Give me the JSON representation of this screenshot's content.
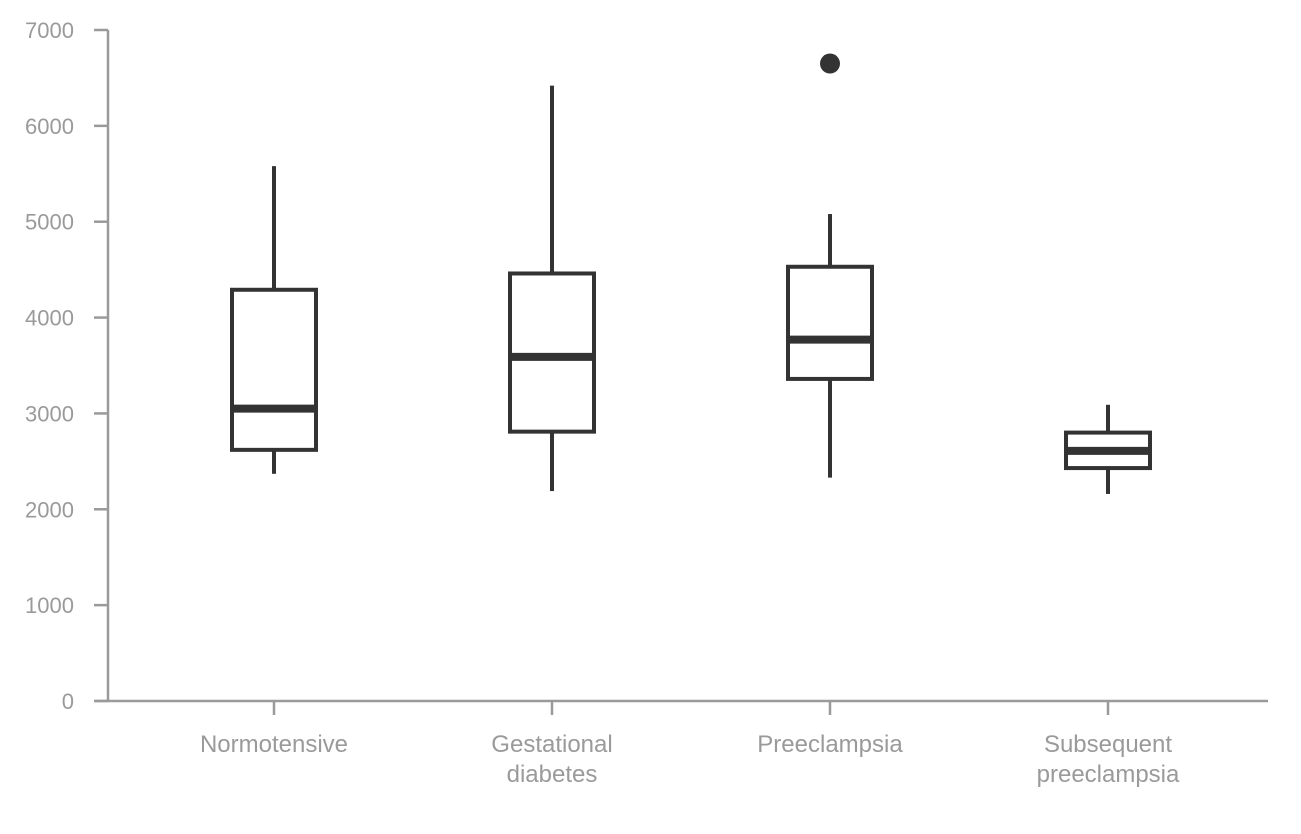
{
  "chart_data": {
    "type": "box",
    "title": "",
    "xlabel": "",
    "ylabel": "",
    "ylim": [
      0,
      7000
    ],
    "yticks": [
      "0",
      "1000",
      "2000",
      "3000",
      "4000",
      "5000",
      "6000",
      "7000"
    ],
    "grid": false,
    "categories": [
      [
        "Normotensive"
      ],
      [
        "Gestational",
        "diabetes"
      ],
      [
        "Preeclampsia"
      ],
      [
        "Subsequent",
        "preeclampsia"
      ]
    ],
    "boxes": [
      {
        "whisker_low": 2370,
        "q1": 2620,
        "median": 3050,
        "q3": 4290,
        "whisker_high": 5580,
        "outliers": []
      },
      {
        "whisker_low": 2190,
        "q1": 2810,
        "median": 3590,
        "q3": 4460,
        "whisker_high": 6420,
        "outliers": []
      },
      {
        "whisker_low": 2330,
        "q1": 3360,
        "median": 3770,
        "q3": 4530,
        "whisker_high": 5080,
        "outliers": [
          6650
        ]
      },
      {
        "whisker_low": 2160,
        "q1": 2430,
        "median": 2610,
        "q3": 2800,
        "whisker_high": 3090,
        "outliers": []
      }
    ],
    "colors": {
      "box": "#333333",
      "axis": "#9a9a9a",
      "label": "#9a9a9a"
    }
  }
}
